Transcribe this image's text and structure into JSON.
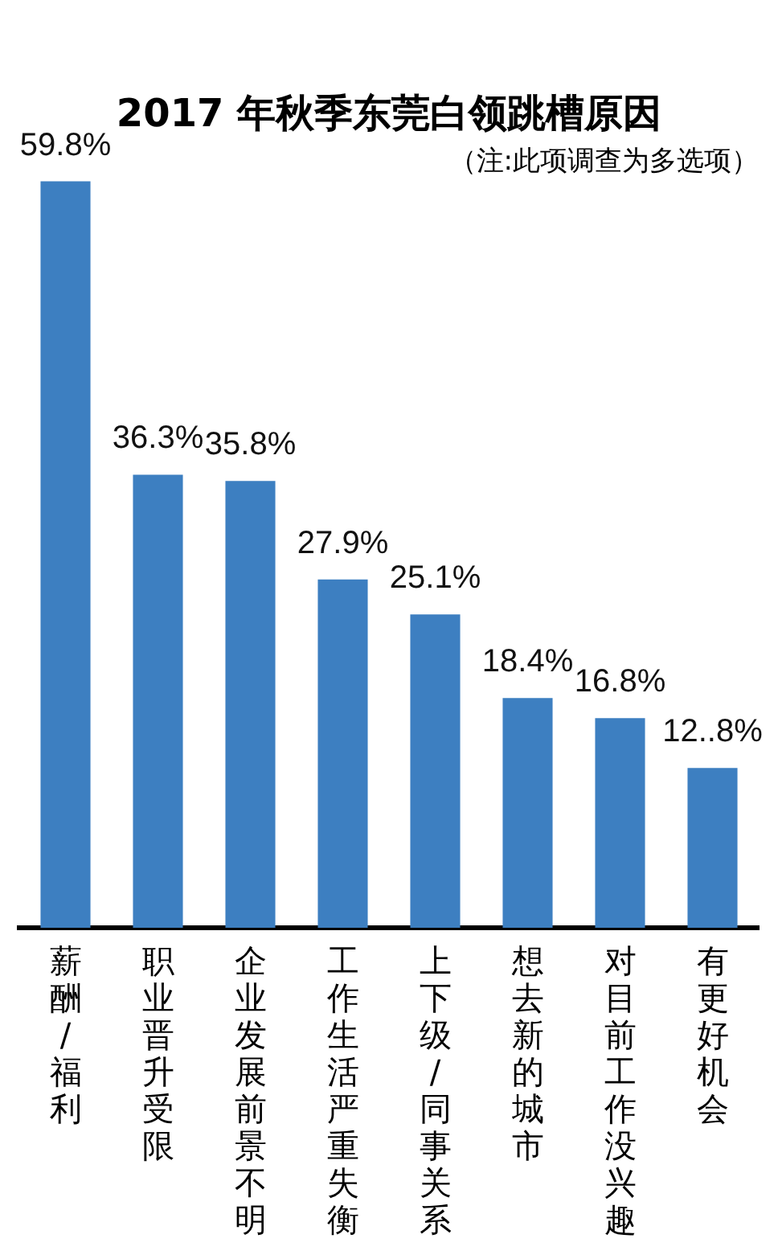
{
  "chart_data": {
    "type": "bar",
    "title": "2017 年秋季东莞白领跳槽原因",
    "subtitle": "（注:此项调查为多选项）",
    "categories": [
      "薪酬/福利",
      "职业晋升受限",
      "企业发展前景不明",
      "工作生活严重失衡",
      "上下级/同事关系",
      "想去新的城市",
      "对目前工作没兴趣",
      "有更好机会"
    ],
    "values": [
      59.8,
      36.3,
      35.8,
      27.9,
      25.1,
      18.4,
      16.8,
      12.8
    ],
    "value_labels": [
      "59.8%",
      "36.3%",
      "35.8%",
      "27.9%",
      "25.1%",
      "18.4%",
      "16.8%",
      "12..8%"
    ],
    "color": "#3d7fc1",
    "grid": false,
    "legend": false,
    "tick_labels": "x"
  }
}
